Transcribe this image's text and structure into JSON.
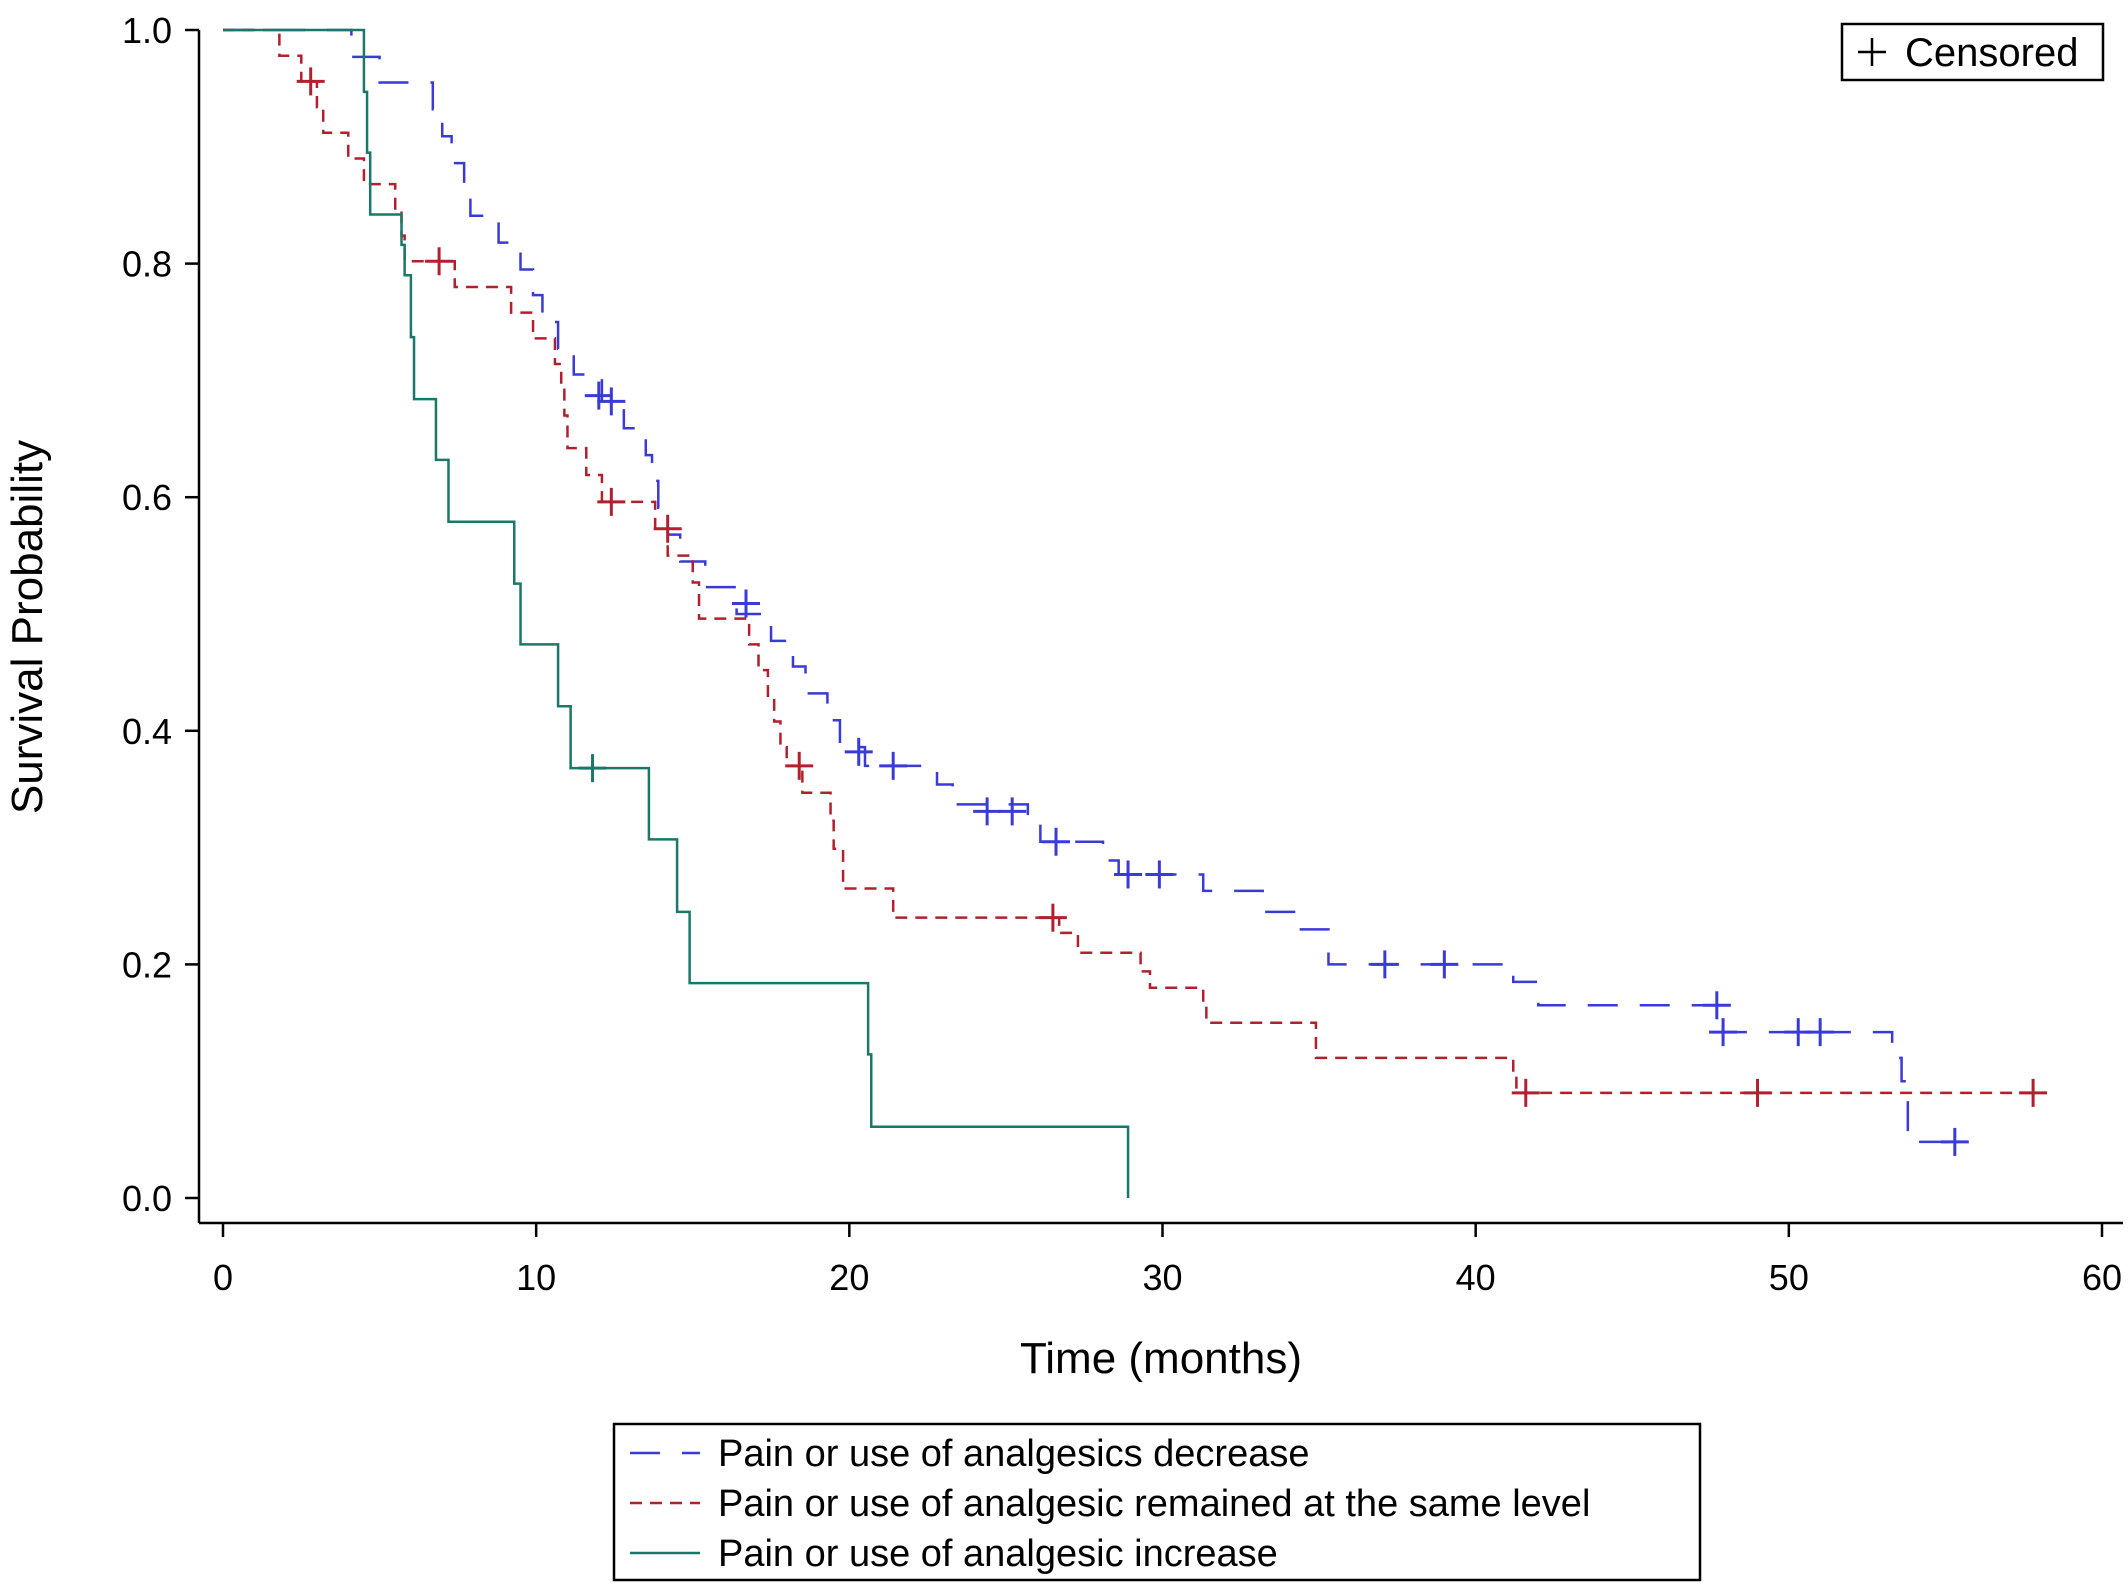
{
  "chart_data": {
    "type": "line",
    "step": true,
    "title": "",
    "xlabel": "Time (months)",
    "ylabel": "Survival Probability",
    "xlim": [
      0,
      60
    ],
    "ylim": [
      0,
      1
    ],
    "xticks": [
      "0",
      "10",
      "20",
      "30",
      "40",
      "50",
      "60"
    ],
    "yticks": [
      "0.0",
      "0.2",
      "0.4",
      "0.6",
      "0.8",
      "1.0"
    ],
    "grid": false,
    "censor_legend": {
      "label": "Censored",
      "placement": "top-right"
    },
    "legend_placement": "bottom",
    "series": [
      {
        "name": "Pain or use of analgesics decrease",
        "color": "#3a3ad6",
        "dash": "long-dash",
        "steps": [
          [
            0,
            1.0
          ],
          [
            4.1,
            0.977
          ],
          [
            5.0,
            0.955
          ],
          [
            6.7,
            0.932
          ],
          [
            7.0,
            0.909
          ],
          [
            7.3,
            0.886
          ],
          [
            7.7,
            0.864
          ],
          [
            7.9,
            0.841
          ],
          [
            8.8,
            0.818
          ],
          [
            9.5,
            0.795
          ],
          [
            9.9,
            0.773
          ],
          [
            10.2,
            0.75
          ],
          [
            10.7,
            0.727
          ],
          [
            11.2,
            0.705
          ],
          [
            12.1,
            0.682
          ],
          [
            12.8,
            0.659
          ],
          [
            13.5,
            0.636
          ],
          [
            13.7,
            0.614
          ],
          [
            13.9,
            0.591
          ],
          [
            14.2,
            0.568
          ],
          [
            14.6,
            0.545
          ],
          [
            15.4,
            0.523
          ],
          [
            16.4,
            0.5
          ],
          [
            17.5,
            0.477
          ],
          [
            18.2,
            0.455
          ],
          [
            18.6,
            0.432
          ],
          [
            19.3,
            0.409
          ],
          [
            19.7,
            0.386
          ],
          [
            20.5,
            0.37
          ],
          [
            22.8,
            0.354
          ],
          [
            23.3,
            0.337
          ],
          [
            25.7,
            0.321
          ],
          [
            26.1,
            0.305
          ],
          [
            28.1,
            0.289
          ],
          [
            28.6,
            0.277
          ],
          [
            31.3,
            0.263
          ],
          [
            33.2,
            0.245
          ],
          [
            34.2,
            0.23
          ],
          [
            35.3,
            0.2
          ],
          [
            41.2,
            0.185
          ],
          [
            42.0,
            0.165
          ],
          [
            47.9,
            0.142
          ],
          [
            53.3,
            0.12
          ],
          [
            53.6,
            0.1
          ],
          [
            53.8,
            0.048
          ],
          [
            55.4,
            0.048
          ]
        ],
        "censored": [
          [
            12.0,
            0.687
          ],
          [
            12.4,
            0.682
          ],
          [
            16.7,
            0.509
          ],
          [
            20.3,
            0.382
          ],
          [
            21.4,
            0.37
          ],
          [
            24.4,
            0.331
          ],
          [
            25.2,
            0.331
          ],
          [
            26.6,
            0.305
          ],
          [
            28.9,
            0.277
          ],
          [
            29.9,
            0.277
          ],
          [
            37.1,
            0.2
          ],
          [
            39.0,
            0.2
          ],
          [
            47.7,
            0.165
          ],
          [
            47.9,
            0.142
          ],
          [
            50.3,
            0.142
          ],
          [
            51.0,
            0.142
          ],
          [
            55.3,
            0.048
          ]
        ]
      },
      {
        "name": "Pain or use of analgesic remained at the same level",
        "color": "#b0202e",
        "dash": "short-dash",
        "steps": [
          [
            0,
            1.0
          ],
          [
            1.8,
            0.978
          ],
          [
            2.5,
            0.956
          ],
          [
            3.0,
            0.934
          ],
          [
            3.2,
            0.912
          ],
          [
            4.0,
            0.89
          ],
          [
            4.5,
            0.868
          ],
          [
            5.5,
            0.846
          ],
          [
            5.7,
            0.824
          ],
          [
            5.8,
            0.802
          ],
          [
            7.4,
            0.78
          ],
          [
            9.2,
            0.758
          ],
          [
            9.9,
            0.736
          ],
          [
            10.6,
            0.714
          ],
          [
            10.8,
            0.692
          ],
          [
            10.9,
            0.67
          ],
          [
            11.0,
            0.642
          ],
          [
            11.6,
            0.619
          ],
          [
            12.1,
            0.596
          ],
          [
            13.8,
            0.573
          ],
          [
            14.2,
            0.55
          ],
          [
            15.0,
            0.527
          ],
          [
            15.2,
            0.496
          ],
          [
            16.8,
            0.474
          ],
          [
            17.1,
            0.452
          ],
          [
            17.4,
            0.43
          ],
          [
            17.6,
            0.408
          ],
          [
            17.8,
            0.386
          ],
          [
            18.0,
            0.37
          ],
          [
            18.5,
            0.347
          ],
          [
            19.4,
            0.323
          ],
          [
            19.5,
            0.299
          ],
          [
            19.8,
            0.265
          ],
          [
            21.4,
            0.24
          ],
          [
            26.7,
            0.227
          ],
          [
            27.3,
            0.21
          ],
          [
            29.3,
            0.194
          ],
          [
            29.6,
            0.18
          ],
          [
            31.3,
            0.165
          ],
          [
            31.4,
            0.15
          ],
          [
            34.9,
            0.12
          ],
          [
            41.2,
            0.105
          ],
          [
            41.3,
            0.09
          ],
          [
            57.8,
            0.09
          ]
        ],
        "censored": [
          [
            2.8,
            0.956
          ],
          [
            6.9,
            0.802
          ],
          [
            12.4,
            0.596
          ],
          [
            14.2,
            0.573
          ],
          [
            18.4,
            0.37
          ],
          [
            26.5,
            0.24
          ],
          [
            41.6,
            0.09
          ],
          [
            49.0,
            0.09
          ],
          [
            57.8,
            0.09
          ]
        ]
      },
      {
        "name": "Pain or use of analgesic increase",
        "color": "#1a7868",
        "dash": "solid",
        "steps": [
          [
            0,
            1.0
          ],
          [
            4.5,
            0.947
          ],
          [
            4.6,
            0.895
          ],
          [
            4.7,
            0.842
          ],
          [
            5.7,
            0.816
          ],
          [
            5.8,
            0.79
          ],
          [
            6.0,
            0.737
          ],
          [
            6.1,
            0.684
          ],
          [
            6.8,
            0.632
          ],
          [
            7.2,
            0.579
          ],
          [
            9.3,
            0.526
          ],
          [
            9.5,
            0.474
          ],
          [
            10.7,
            0.421
          ],
          [
            11.1,
            0.368
          ],
          [
            13.6,
            0.307
          ],
          [
            14.5,
            0.245
          ],
          [
            14.9,
            0.184
          ],
          [
            20.6,
            0.123
          ],
          [
            20.7,
            0.061
          ],
          [
            28.9,
            0.061
          ],
          [
            28.9,
            0.0
          ]
        ],
        "censored": [
          [
            11.8,
            0.368
          ]
        ]
      }
    ]
  }
}
